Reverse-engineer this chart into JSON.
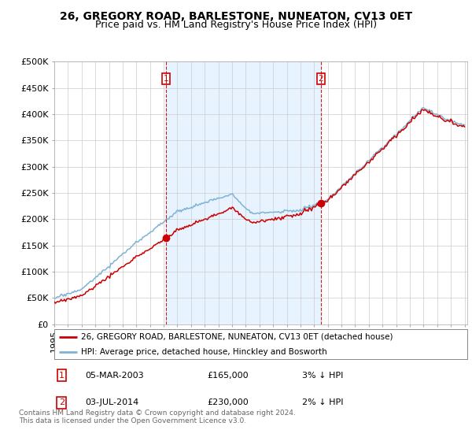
{
  "title": "26, GREGORY ROAD, BARLESTONE, NUNEATON, CV13 0ET",
  "subtitle": "Price paid vs. HM Land Registry's House Price Index (HPI)",
  "ylabel_ticks": [
    "£0",
    "£50K",
    "£100K",
    "£150K",
    "£200K",
    "£250K",
    "£300K",
    "£350K",
    "£400K",
    "£450K",
    "£500K"
  ],
  "ytick_values": [
    0,
    50000,
    100000,
    150000,
    200000,
    250000,
    300000,
    350000,
    400000,
    450000,
    500000
  ],
  "ylim": [
    0,
    500000
  ],
  "xlim_start": 1995.0,
  "xlim_end": 2025.2,
  "sale1_date": 2003.17,
  "sale1_price": 165000,
  "sale2_date": 2014.5,
  "sale2_price": 230000,
  "hpi_color": "#7fb3d3",
  "price_color": "#cc0000",
  "vline_color": "#cc0000",
  "shade_color": "#ddeeff",
  "legend_label_price": "26, GREGORY ROAD, BARLESTONE, NUNEATON, CV13 0ET (detached house)",
  "legend_label_hpi": "HPI: Average price, detached house, Hinckley and Bosworth",
  "footnote": "Contains HM Land Registry data © Crown copyright and database right 2024.\nThis data is licensed under the Open Government Licence v3.0.",
  "background_color": "#ffffff",
  "plot_bg_color": "#ffffff",
  "grid_color": "#cccccc",
  "title_fontsize": 10,
  "subtitle_fontsize": 9,
  "tick_fontsize": 8
}
